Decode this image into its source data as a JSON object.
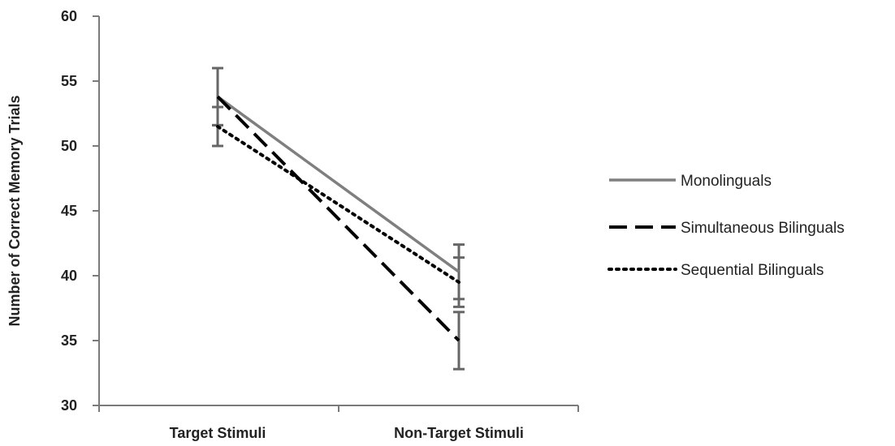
{
  "chart_data": {
    "type": "line",
    "title": "",
    "xlabel": "",
    "ylabel": "Number of Correct Memory Trials",
    "categories": [
      "Target Stimuli",
      "Non-Target Stimuli"
    ],
    "ylim": [
      30,
      60
    ],
    "yticks": [
      30,
      35,
      40,
      45,
      50,
      55,
      60
    ],
    "grid": false,
    "legend_position": "right",
    "series": [
      {
        "name": "Monolinguals",
        "values": [
          53.8,
          40.3
        ],
        "error": [
          2.2,
          2.1
        ],
        "style": "solid",
        "color": "#7f7f7f"
      },
      {
        "name": "Simultaneous Bilinguals",
        "values": [
          53.8,
          35.0
        ],
        "error": [
          2.2,
          2.2
        ],
        "style": "dashed",
        "color": "#000000"
      },
      {
        "name": "Sequential Bilinguals",
        "values": [
          51.5,
          39.5
        ],
        "error": [
          1.5,
          1.9
        ],
        "style": "dotted",
        "color": "#000000"
      }
    ]
  }
}
